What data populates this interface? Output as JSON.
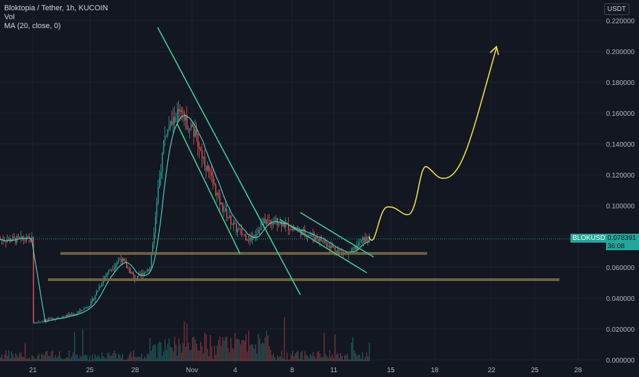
{
  "legend": {
    "symbol": "Bloktopia / Tether, 1h, KUCOIN",
    "vol": "Vol",
    "ma": "MA (20, close, 0)"
  },
  "currency": "USDT",
  "current": {
    "symbol": "BLOKUSDT",
    "price": "0.078391",
    "countdown": "36:08"
  },
  "colors": {
    "background": "#131722",
    "grid": "#1e222d",
    "up": "#26a69a",
    "down": "#ef5350",
    "trendline": "#3bd39a",
    "support": "#7a6a44",
    "projection": "#f5e04a",
    "ma": "#4fd1c5"
  },
  "chart_data": {
    "type": "candlestick",
    "title": "Bloktopia / Tether, 1h, KUCOIN",
    "y_axis": {
      "ticks": [
        "0.220000",
        "0.200000",
        "0.180000",
        "0.160000",
        "0.140000",
        "0.120000",
        "0.100000",
        "0.080000",
        "0.060000",
        "0.040000",
        "0.020000",
        "0.000000"
      ],
      "ylim": [
        0,
        0.225
      ]
    },
    "x_axis": {
      "ticks": [
        "21",
        "25",
        "28",
        "Nov",
        "4",
        "8",
        "11",
        "15",
        "18",
        "22",
        "25",
        "28"
      ]
    },
    "approx_close_path": [
      {
        "x": "21",
        "y": 0.024
      },
      {
        "x": "24",
        "y": 0.03
      },
      {
        "x": "25",
        "y": 0.036
      },
      {
        "x": "26",
        "y": 0.055
      },
      {
        "x": "27",
        "y": 0.066
      },
      {
        "x": "28",
        "y": 0.052
      },
      {
        "x": "29",
        "y": 0.06
      },
      {
        "x": "30",
        "y": 0.145
      },
      {
        "x": "31",
        "y": 0.16
      },
      {
        "x": "Nov",
        "y": 0.15
      },
      {
        "x": "2",
        "y": 0.125
      },
      {
        "x": "3",
        "y": 0.1
      },
      {
        "x": "4",
        "y": 0.085
      },
      {
        "x": "5",
        "y": 0.078
      },
      {
        "x": "6",
        "y": 0.09
      },
      {
        "x": "7",
        "y": 0.09
      },
      {
        "x": "8",
        "y": 0.085
      },
      {
        "x": "9",
        "y": 0.082
      },
      {
        "x": "10",
        "y": 0.078
      },
      {
        "x": "11",
        "y": 0.072
      },
      {
        "x": "12",
        "y": 0.068
      },
      {
        "x": "13",
        "y": 0.078
      }
    ],
    "support_levels": [
      0.069,
      0.052
    ],
    "projection_path": [
      {
        "x": "13",
        "y": 0.078
      },
      {
        "x": "14",
        "y": 0.095
      },
      {
        "x": "15",
        "y": 0.095
      },
      {
        "x": "16",
        "y": 0.095
      },
      {
        "x": "17",
        "y": 0.123
      },
      {
        "x": "18",
        "y": 0.116
      },
      {
        "x": "20",
        "y": 0.14
      },
      {
        "x": "22",
        "y": 0.2
      }
    ],
    "grid": true,
    "legend_position": "top-left"
  }
}
